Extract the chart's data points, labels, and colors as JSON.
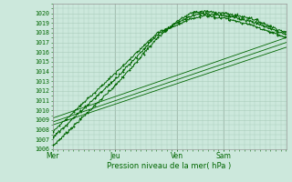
{
  "xlabel": "Pression niveau de la mer( hPa )",
  "bg_color": "#cce8dc",
  "grid_color": "#aaccbb",
  "line_color": "#006600",
  "ylim": [
    1006,
    1021
  ],
  "ytick_labels": [
    "1006",
    "1007",
    "1008",
    "1009",
    "1010",
    "1011",
    "1012",
    "1013",
    "1014",
    "1015",
    "1016",
    "1017",
    "1018",
    "1019",
    "1020"
  ],
  "ytick_vals": [
    1006,
    1007,
    1008,
    1009,
    1010,
    1011,
    1012,
    1013,
    1014,
    1015,
    1016,
    1017,
    1018,
    1019,
    1020
  ],
  "xtick_labels": [
    "Mer",
    "Jeu",
    "Ven",
    "Sam"
  ],
  "xtick_positions": [
    0.0,
    0.267,
    0.533,
    0.733
  ],
  "xlim": [
    0.0,
    1.0
  ]
}
